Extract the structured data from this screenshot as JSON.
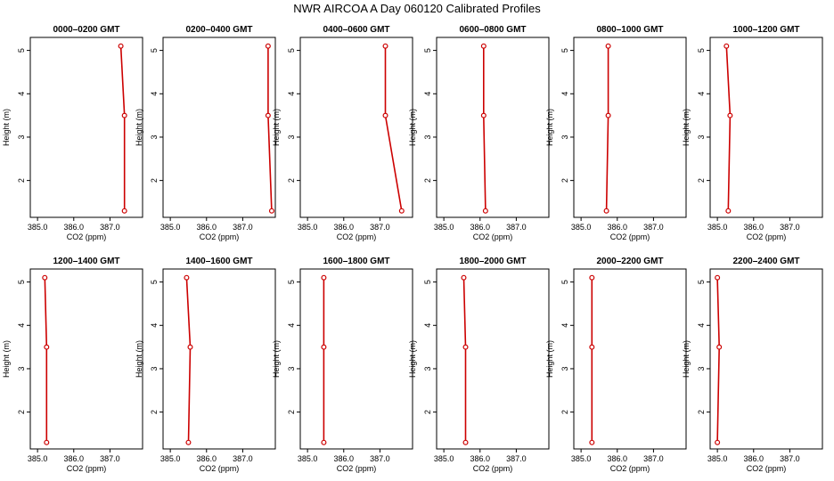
{
  "title": "NWR AIRCOA A  Day 060120  Calibrated Profiles",
  "colors": {
    "profile": "#cc0000",
    "axis": "#000000"
  },
  "chart_data": [
    {
      "type": "line",
      "title": "0000–0200 GMT",
      "xlabel": "CO2 (ppm)",
      "ylabel": "Height (m)",
      "xlim": [
        384.8,
        387.9
      ],
      "ylim": [
        1.15,
        5.3
      ],
      "x_ticks": [
        "385.0",
        "386.0",
        "387.0"
      ],
      "y_ticks": [
        "2",
        "3",
        "4",
        "5"
      ],
      "series": [
        {
          "x": [
            387.3,
            387.4,
            387.4
          ],
          "y": [
            5.1,
            3.5,
            1.3
          ]
        }
      ]
    },
    {
      "type": "line",
      "title": "0200–0400 GMT",
      "xlabel": "CO2 (ppm)",
      "ylabel": "Height (m)",
      "xlim": [
        384.8,
        387.9
      ],
      "ylim": [
        1.15,
        5.3
      ],
      "x_ticks": [
        "385.0",
        "386.0",
        "387.0"
      ],
      "y_ticks": [
        "2",
        "3",
        "4",
        "5"
      ],
      "series": [
        {
          "x": [
            387.7,
            387.7,
            387.8
          ],
          "y": [
            5.1,
            3.5,
            1.3
          ]
        }
      ]
    },
    {
      "type": "line",
      "title": "0400–0600 GMT",
      "xlabel": "CO2 (ppm)",
      "ylabel": "Height (m)",
      "xlim": [
        384.8,
        387.9
      ],
      "ylim": [
        1.15,
        5.3
      ],
      "x_ticks": [
        "385.0",
        "386.0",
        "387.0"
      ],
      "y_ticks": [
        "2",
        "3",
        "4",
        "5"
      ],
      "series": [
        {
          "x": [
            387.15,
            387.15,
            387.6
          ],
          "y": [
            5.1,
            3.5,
            1.3
          ]
        }
      ]
    },
    {
      "type": "line",
      "title": "0600–0800 GMT",
      "xlabel": "CO2 (ppm)",
      "ylabel": "Height (m)",
      "xlim": [
        384.8,
        387.9
      ],
      "ylim": [
        1.15,
        5.3
      ],
      "x_ticks": [
        "385.0",
        "386.0",
        "387.0"
      ],
      "y_ticks": [
        "2",
        "3",
        "4",
        "5"
      ],
      "series": [
        {
          "x": [
            386.1,
            386.1,
            386.15
          ],
          "y": [
            5.1,
            3.5,
            1.3
          ]
        }
      ]
    },
    {
      "type": "line",
      "title": "0800–1000 GMT",
      "xlabel": "CO2 (ppm)",
      "ylabel": "Height (m)",
      "xlim": [
        384.8,
        387.9
      ],
      "ylim": [
        1.15,
        5.3
      ],
      "x_ticks": [
        "385.0",
        "386.0",
        "387.0"
      ],
      "y_ticks": [
        "2",
        "3",
        "4",
        "5"
      ],
      "series": [
        {
          "x": [
            385.75,
            385.75,
            385.7
          ],
          "y": [
            5.1,
            3.5,
            1.3
          ]
        }
      ]
    },
    {
      "type": "line",
      "title": "1000–1200 GMT",
      "xlabel": "CO2 (ppm)",
      "ylabel": "Height (m)",
      "xlim": [
        384.8,
        387.9
      ],
      "ylim": [
        1.15,
        5.3
      ],
      "x_ticks": [
        "385.0",
        "386.0",
        "387.0"
      ],
      "y_ticks": [
        "2",
        "3",
        "4",
        "5"
      ],
      "series": [
        {
          "x": [
            385.25,
            385.35,
            385.3
          ],
          "y": [
            5.1,
            3.5,
            1.3
          ]
        }
      ]
    },
    {
      "type": "line",
      "title": "1200–1400 GMT",
      "xlabel": "CO2 (ppm)",
      "ylabel": "Height (m)",
      "xlim": [
        384.8,
        387.9
      ],
      "ylim": [
        1.15,
        5.3
      ],
      "x_ticks": [
        "385.0",
        "386.0",
        "387.0"
      ],
      "y_ticks": [
        "2",
        "3",
        "4",
        "5"
      ],
      "series": [
        {
          "x": [
            385.2,
            385.25,
            385.25
          ],
          "y": [
            5.1,
            3.5,
            1.3
          ]
        }
      ]
    },
    {
      "type": "line",
      "title": "1400–1600 GMT",
      "xlabel": "CO2 (ppm)",
      "ylabel": "Height (m)",
      "xlim": [
        384.8,
        387.9
      ],
      "ylim": [
        1.15,
        5.3
      ],
      "x_ticks": [
        "385.0",
        "386.0",
        "387.0"
      ],
      "y_ticks": [
        "2",
        "3",
        "4",
        "5"
      ],
      "series": [
        {
          "x": [
            385.45,
            385.55,
            385.5
          ],
          "y": [
            5.1,
            3.5,
            1.3
          ]
        }
      ]
    },
    {
      "type": "line",
      "title": "1600–1800 GMT",
      "xlabel": "CO2 (ppm)",
      "ylabel": "Height (m)",
      "xlim": [
        384.8,
        387.9
      ],
      "ylim": [
        1.15,
        5.3
      ],
      "x_ticks": [
        "385.0",
        "386.0",
        "387.0"
      ],
      "y_ticks": [
        "2",
        "3",
        "4",
        "5"
      ],
      "series": [
        {
          "x": [
            385.45,
            385.45,
            385.45
          ],
          "y": [
            5.1,
            3.5,
            1.3
          ]
        }
      ]
    },
    {
      "type": "line",
      "title": "1800–2000 GMT",
      "xlabel": "CO2 (ppm)",
      "ylabel": "Height (m)",
      "xlim": [
        384.8,
        387.9
      ],
      "ylim": [
        1.15,
        5.3
      ],
      "x_ticks": [
        "385.0",
        "386.0",
        "387.0"
      ],
      "y_ticks": [
        "2",
        "3",
        "4",
        "5"
      ],
      "series": [
        {
          "x": [
            385.55,
            385.6,
            385.6
          ],
          "y": [
            5.1,
            3.5,
            1.3
          ]
        }
      ]
    },
    {
      "type": "line",
      "title": "2000–2200 GMT",
      "xlabel": "CO2 (ppm)",
      "ylabel": "Height (m)",
      "xlim": [
        384.8,
        387.9
      ],
      "ylim": [
        1.15,
        5.3
      ],
      "x_ticks": [
        "385.0",
        "386.0",
        "387.0"
      ],
      "y_ticks": [
        "2",
        "3",
        "4",
        "5"
      ],
      "series": [
        {
          "x": [
            385.3,
            385.3,
            385.3
          ],
          "y": [
            5.1,
            3.5,
            1.3
          ]
        }
      ]
    },
    {
      "type": "line",
      "title": "2200–2400 GMT",
      "xlabel": "CO2 (ppm)",
      "ylabel": "Height (m)",
      "xlim": [
        384.8,
        387.9
      ],
      "ylim": [
        1.15,
        5.3
      ],
      "x_ticks": [
        "385.0",
        "386.0",
        "387.0"
      ],
      "y_ticks": [
        "2",
        "3",
        "4",
        "5"
      ],
      "series": [
        {
          "x": [
            385.0,
            385.05,
            385.0
          ],
          "y": [
            5.1,
            3.5,
            1.3
          ]
        }
      ]
    }
  ]
}
